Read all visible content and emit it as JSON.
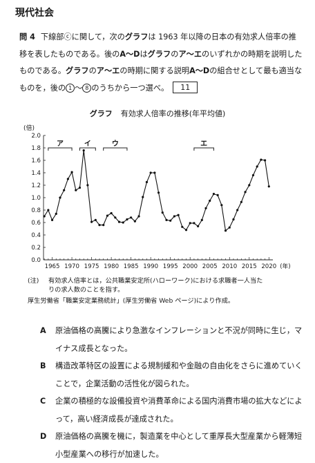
{
  "header": {
    "subject": "現代社会"
  },
  "question": {
    "number": "問 4",
    "text_before": "下線部ⓒに関して，次の",
    "grafu1": "グラフ",
    "text_mid1": "は 1963 年以降の日本の有効求人倍率の推移を表したものである。後の",
    "a_to_d1": "A～D",
    "text_mid2": "は",
    "grafu2": "グラフ",
    "text_mid3": "の",
    "a_to_e1": "ア～エ",
    "text_mid4": "のいずれかの時期を説明したものである。",
    "grafu3": "グラフ",
    "text_mid5": "の",
    "a_to_e2": "ア～エ",
    "text_mid6": "の時期に関する説明",
    "a_to_d2": "A～D",
    "text_mid7": "の組合せとして最も適当なものを，後の",
    "circ_start": "1",
    "tilde": "～",
    "circ_end": "8",
    "text_end": "のうちから一つ選べ。",
    "answer_number": "11"
  },
  "chart_title": {
    "label": "グラフ",
    "text": "有効求人倍率の推移(年平均値)"
  },
  "chart_data": {
    "type": "line",
    "ylabel": "(倍)",
    "xlabel": "(年)",
    "ylim": [
      0.0,
      2.0
    ],
    "yticks": [
      "0.0",
      "0.2",
      "0.4",
      "0.6",
      "0.8",
      "1.0",
      "1.2",
      "1.4",
      "1.6",
      "1.8",
      "2.0"
    ],
    "xticks": [
      "1965",
      "1970",
      "1975",
      "1980",
      "1985",
      "1990",
      "1995",
      "2000",
      "2005",
      "2010",
      "2015",
      "2020"
    ],
    "grid": false,
    "x": [
      1963,
      1964,
      1965,
      1966,
      1967,
      1968,
      1969,
      1970,
      1971,
      1972,
      1973,
      1974,
      1975,
      1976,
      1977,
      1978,
      1979,
      1980,
      1981,
      1982,
      1983,
      1984,
      1985,
      1986,
      1987,
      1988,
      1989,
      1990,
      1991,
      1992,
      1993,
      1994,
      1995,
      1996,
      1997,
      1998,
      1999,
      2000,
      2001,
      2002,
      2003,
      2004,
      2005,
      2006,
      2007,
      2008,
      2009,
      2010,
      2011,
      2012,
      2013,
      2014,
      2015,
      2016,
      2017,
      2018,
      2019,
      2020
    ],
    "values": [
      0.7,
      0.8,
      0.64,
      0.74,
      1.0,
      1.12,
      1.3,
      1.41,
      1.12,
      1.16,
      1.76,
      1.2,
      0.61,
      0.64,
      0.56,
      0.56,
      0.71,
      0.75,
      0.68,
      0.61,
      0.6,
      0.65,
      0.68,
      0.62,
      0.7,
      1.01,
      1.25,
      1.4,
      1.4,
      1.08,
      0.76,
      0.64,
      0.63,
      0.7,
      0.72,
      0.53,
      0.48,
      0.59,
      0.59,
      0.54,
      0.64,
      0.83,
      0.95,
      1.06,
      1.04,
      0.88,
      0.47,
      0.52,
      0.65,
      0.8,
      0.93,
      1.09,
      1.2,
      1.36,
      1.5,
      1.61,
      1.6,
      1.18
    ],
    "periods": [
      {
        "label": "ア",
        "from": 1964,
        "to": 1970
      },
      {
        "label": "イ",
        "from": 1972,
        "to": 1976
      },
      {
        "label": "ウ",
        "from": 1978,
        "to": 1984
      },
      {
        "label": "エ",
        "from": 2001,
        "to": 2006
      }
    ]
  },
  "note": {
    "label": "(注)",
    "line1": "有効求人倍率とは，公共職業安定所(ハローワーク)における求職者一人当た",
    "line2": "りの求人数のことを指す。"
  },
  "source": "厚生労働省「職業安定業務統計」(厚生労働省 Web ページ)により作成。",
  "choices": [
    {
      "key": "A",
      "text": "原油価格の高騰により急激なインフレーションと不況が同時に生じ，マイナス成長となった。"
    },
    {
      "key": "B",
      "text": "構造改革特区の設置による規制緩和や金融の自由化をさらに進めていくことで，企業活動の活性化が図られた。"
    },
    {
      "key": "C",
      "text": "企業の積極的な設備投資や消費革命による国内消費市場の拡大などによって，高い経済成長が達成された。"
    },
    {
      "key": "D",
      "text": "原油価格の高騰を機に，製造業を中心として重厚長大型産業から軽薄短小型産業への移行が加速した。"
    }
  ]
}
